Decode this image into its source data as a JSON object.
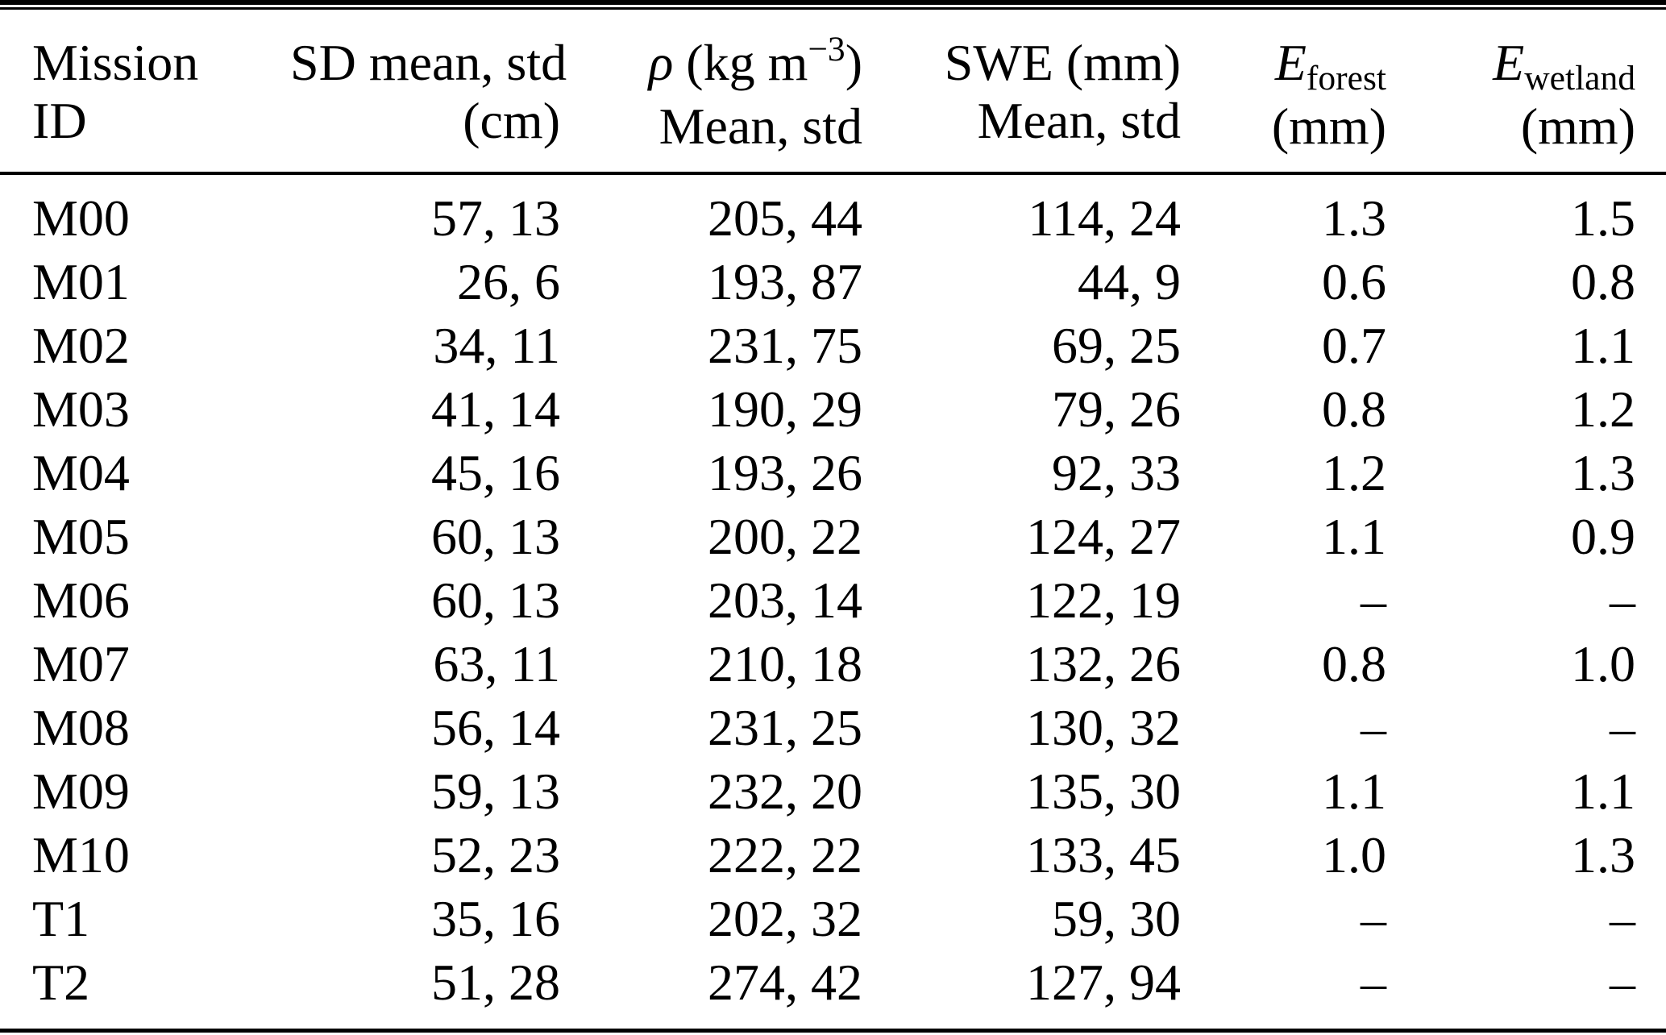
{
  "colors": {
    "text": "#000000",
    "background": "#ffffff",
    "rule": "#000000"
  },
  "table": {
    "header": {
      "col1": {
        "line1": "Mission",
        "line2": "ID"
      },
      "col2": {
        "line1": "SD mean, std",
        "line2": "(cm)"
      },
      "col3": {
        "symbol": "ρ",
        "unit_open": " (kg m",
        "unit_sup": "−3",
        "unit_close": ")",
        "line2": "Mean, std"
      },
      "col4": {
        "line1": "SWE (mm)",
        "line2": "Mean, std"
      },
      "col5": {
        "symbol": "E",
        "subscript": "forest",
        "line2": "(mm)"
      },
      "col6": {
        "symbol": "E",
        "subscript": "wetland",
        "line2": "(mm)"
      }
    },
    "rows": [
      {
        "id": "M00",
        "sd": "57, 13",
        "rho": "205, 44",
        "swe": "114, 24",
        "e_forest": "1.3",
        "e_wetland": "1.5"
      },
      {
        "id": "M01",
        "sd": "26, 6",
        "rho": "193, 87",
        "swe": "44, 9",
        "e_forest": "0.6",
        "e_wetland": "0.8"
      },
      {
        "id": "M02",
        "sd": "34, 11",
        "rho": "231, 75",
        "swe": "69, 25",
        "e_forest": "0.7",
        "e_wetland": "1.1"
      },
      {
        "id": "M03",
        "sd": "41, 14",
        "rho": "190, 29",
        "swe": "79, 26",
        "e_forest": "0.8",
        "e_wetland": "1.2"
      },
      {
        "id": "M04",
        "sd": "45, 16",
        "rho": "193, 26",
        "swe": "92, 33",
        "e_forest": "1.2",
        "e_wetland": "1.3"
      },
      {
        "id": "M05",
        "sd": "60, 13",
        "rho": "200, 22",
        "swe": "124, 27",
        "e_forest": "1.1",
        "e_wetland": "0.9"
      },
      {
        "id": "M06",
        "sd": "60, 13",
        "rho": "203, 14",
        "swe": "122, 19",
        "e_forest": "–",
        "e_wetland": "–"
      },
      {
        "id": "M07",
        "sd": "63, 11",
        "rho": "210, 18",
        "swe": "132, 26",
        "e_forest": "0.8",
        "e_wetland": "1.0"
      },
      {
        "id": "M08",
        "sd": "56, 14",
        "rho": "231, 25",
        "swe": "130, 32",
        "e_forest": "–",
        "e_wetland": "–"
      },
      {
        "id": "M09",
        "sd": "59, 13",
        "rho": "232, 20",
        "swe": "135, 30",
        "e_forest": "1.1",
        "e_wetland": "1.1"
      },
      {
        "id": "M10",
        "sd": "52, 23",
        "rho": "222, 22",
        "swe": "133, 45",
        "e_forest": "1.0",
        "e_wetland": "1.3"
      },
      {
        "id": "T1",
        "sd": "35, 16",
        "rho": "202, 32",
        "swe": "59, 30",
        "e_forest": "–",
        "e_wetland": "–"
      },
      {
        "id": "T2",
        "sd": "51, 28",
        "rho": "274, 42",
        "swe": "127, 94",
        "e_forest": "–",
        "e_wetland": "–"
      }
    ]
  }
}
